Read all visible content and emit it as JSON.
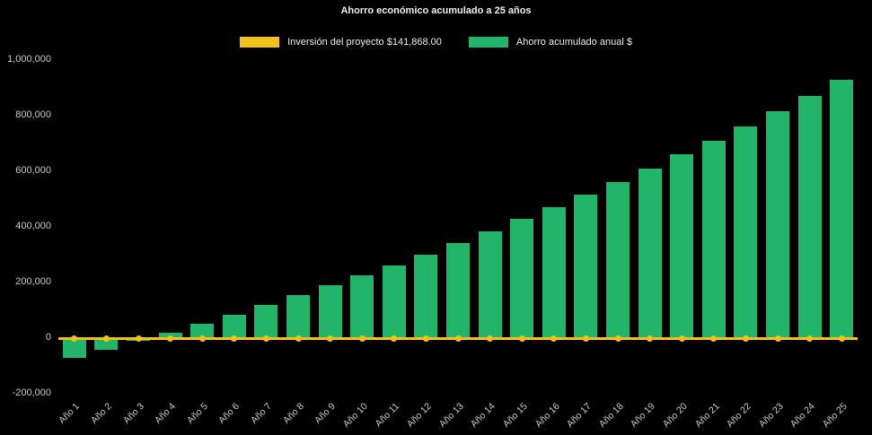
{
  "chart_data": {
    "type": "bar",
    "title": "Ahorro económico acumulado a 25 años",
    "background_color": "#000000",
    "text_color": "#c9c9c9",
    "grid": false,
    "legend_position": "top",
    "ylim": [
      -200000,
      1000000
    ],
    "y_ticks": [
      {
        "value": 1000000,
        "label": "1,000,000"
      },
      {
        "value": 800000,
        "label": "800,000"
      },
      {
        "value": 600000,
        "label": "600,000"
      },
      {
        "value": 400000,
        "label": "400,000"
      },
      {
        "value": 200000,
        "label": "200,000"
      },
      {
        "value": 0,
        "label": "0"
      },
      {
        "value": -200000,
        "label": "-200,000"
      }
    ],
    "categories": [
      "Año 1",
      "Año 2",
      "Año 3",
      "Año 4",
      "Año 5",
      "Año 6",
      "Año 7",
      "Año 8",
      "Año 9",
      "Año 10",
      "Año 11",
      "Año 12",
      "Año 13",
      "Año 14",
      "Año 15",
      "Año 16",
      "Año 17",
      "Año 18",
      "Año 19",
      "Año 20",
      "Año 21",
      "Año 22",
      "Año 23",
      "Año 24",
      "Año 25"
    ],
    "series": [
      {
        "name": "Inversión del proyecto $141,868.00",
        "type": "line",
        "color": "#f1c21b",
        "values": [
          0,
          0,
          0,
          0,
          0,
          0,
          0,
          0,
          0,
          0,
          0,
          0,
          0,
          0,
          0,
          0,
          0,
          0,
          0,
          0,
          0,
          0,
          0,
          0,
          0
        ]
      },
      {
        "name": "Ahorro acumulado anual $",
        "type": "bar",
        "color": "#22b469",
        "values": [
          -72000,
          -42000,
          -10000,
          20000,
          52000,
          85000,
          120000,
          155000,
          190000,
          225000,
          262000,
          300000,
          342000,
          385000,
          428000,
          470000,
          515000,
          562000,
          610000,
          660000,
          710000,
          762000,
          815000,
          872000,
          930000
        ]
      }
    ]
  }
}
